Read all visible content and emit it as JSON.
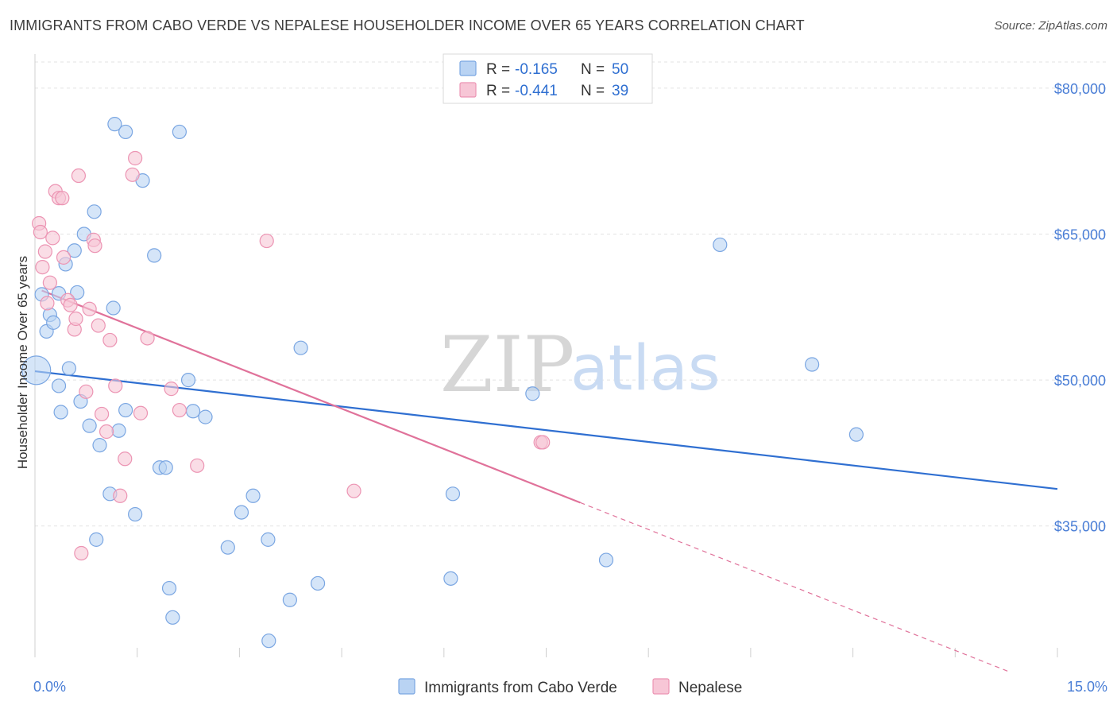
{
  "title": "IMMIGRANTS FROM CABO VERDE VS NEPALESE HOUSEHOLDER INCOME OVER 65 YEARS CORRELATION CHART",
  "source": "Source: ZipAtlas.com",
  "watermark": {
    "zip": "ZIP",
    "atlas": "atlas"
  },
  "colors": {
    "blue_fill": "#b9d3f3",
    "blue_stroke": "#7aa6e2",
    "blue_line": "#2f6fd1",
    "pink_fill": "#f7c6d6",
    "pink_stroke": "#ec94b3",
    "pink_line": "#e0729a",
    "grid": "#e3e3e3",
    "axis_text": "#4a7ed6"
  },
  "legend": {
    "items": [
      {
        "r_label": "R = ",
        "r_value": "-0.165",
        "n_label": "N = ",
        "n_value": "50",
        "color": "blue"
      },
      {
        "r_label": "R = ",
        "r_value": "-0.441",
        "n_label": "N = ",
        "n_value": "39",
        "color": "pink"
      }
    ]
  },
  "chart_data": {
    "type": "scatter",
    "xlabel": "",
    "ylabel": "Householder Income Over 65 years",
    "xlim": [
      0,
      15
    ],
    "ylim": [
      21500,
      83500
    ],
    "x_tick_labels": [
      {
        "value": 0,
        "label": "0.0%"
      },
      {
        "value": 15,
        "label": "15.0%"
      }
    ],
    "y_ticks": [
      {
        "value": 35000,
        "label": "$35,000"
      },
      {
        "value": 50000,
        "label": "$50,000"
      },
      {
        "value": 65000,
        "label": "$65,000"
      },
      {
        "value": 80000,
        "label": "$80,000"
      }
    ],
    "grid": true,
    "legend_position": "top-center",
    "series": [
      {
        "name": "Immigrants from Cabo Verde",
        "color": "blue",
        "trend": {
          "x": [
            0,
            15
          ],
          "y": [
            50900,
            38800
          ],
          "dashed_to": null
        },
        "points": [
          {
            "x": 0.02,
            "y": 51000,
            "big": true
          },
          {
            "x": 0.1,
            "y": 58800
          },
          {
            "x": 0.17,
            "y": 55000
          },
          {
            "x": 0.22,
            "y": 56700
          },
          {
            "x": 0.27,
            "y": 55900
          },
          {
            "x": 0.35,
            "y": 49400
          },
          {
            "x": 0.38,
            "y": 46700
          },
          {
            "x": 0.5,
            "y": 51200
          },
          {
            "x": 0.45,
            "y": 61900
          },
          {
            "x": 0.58,
            "y": 63300
          },
          {
            "x": 0.62,
            "y": 59000
          },
          {
            "x": 0.67,
            "y": 47800
          },
          {
            "x": 0.72,
            "y": 65000
          },
          {
            "x": 0.8,
            "y": 45300
          },
          {
            "x": 0.87,
            "y": 67300
          },
          {
            "x": 0.95,
            "y": 43300
          },
          {
            "x": 0.9,
            "y": 33600
          },
          {
            "x": 1.1,
            "y": 38300
          },
          {
            "x": 1.15,
            "y": 57400
          },
          {
            "x": 1.17,
            "y": 76300
          },
          {
            "x": 1.23,
            "y": 44800
          },
          {
            "x": 1.33,
            "y": 75500
          },
          {
            "x": 1.33,
            "y": 46900
          },
          {
            "x": 1.47,
            "y": 36200
          },
          {
            "x": 1.58,
            "y": 70500
          },
          {
            "x": 1.75,
            "y": 62800
          },
          {
            "x": 1.83,
            "y": 41000
          },
          {
            "x": 1.92,
            "y": 41000
          },
          {
            "x": 1.97,
            "y": 28600
          },
          {
            "x": 2.02,
            "y": 25600
          },
          {
            "x": 2.12,
            "y": 75500
          },
          {
            "x": 2.25,
            "y": 50000
          },
          {
            "x": 2.32,
            "y": 46800
          },
          {
            "x": 2.5,
            "y": 46200
          },
          {
            "x": 2.83,
            "y": 32800
          },
          {
            "x": 3.03,
            "y": 36400
          },
          {
            "x": 3.2,
            "y": 38100
          },
          {
            "x": 3.42,
            "y": 33600
          },
          {
            "x": 3.43,
            "y": 23200
          },
          {
            "x": 3.74,
            "y": 27400
          },
          {
            "x": 3.9,
            "y": 53300
          },
          {
            "x": 4.15,
            "y": 29100
          },
          {
            "x": 6.1,
            "y": 29600
          },
          {
            "x": 6.13,
            "y": 38300
          },
          {
            "x": 7.3,
            "y": 48600
          },
          {
            "x": 8.38,
            "y": 31500
          },
          {
            "x": 10.05,
            "y": 63900
          },
          {
            "x": 11.4,
            "y": 51600
          },
          {
            "x": 12.05,
            "y": 44400
          },
          {
            "x": 0.35,
            "y": 58900
          }
        ]
      },
      {
        "name": "Nepalese",
        "color": "pink",
        "trend": {
          "x": [
            0.1,
            8.0
          ],
          "y": [
            59200,
            37400
          ],
          "dashed_to": {
            "x": 14.3,
            "y": 20000
          }
        },
        "points": [
          {
            "x": 0.06,
            "y": 66100
          },
          {
            "x": 0.08,
            "y": 65200
          },
          {
            "x": 0.11,
            "y": 61600
          },
          {
            "x": 0.15,
            "y": 63200
          },
          {
            "x": 0.18,
            "y": 57900
          },
          {
            "x": 0.22,
            "y": 60000
          },
          {
            "x": 0.26,
            "y": 64600
          },
          {
            "x": 0.3,
            "y": 69400
          },
          {
            "x": 0.35,
            "y": 68700
          },
          {
            "x": 0.4,
            "y": 68700
          },
          {
            "x": 0.42,
            "y": 62600
          },
          {
            "x": 0.48,
            "y": 58200
          },
          {
            "x": 0.52,
            "y": 57700
          },
          {
            "x": 0.58,
            "y": 55200
          },
          {
            "x": 0.6,
            "y": 56300
          },
          {
            "x": 0.64,
            "y": 71000
          },
          {
            "x": 0.68,
            "y": 32200
          },
          {
            "x": 0.75,
            "y": 48800
          },
          {
            "x": 0.8,
            "y": 57300
          },
          {
            "x": 0.86,
            "y": 64400
          },
          {
            "x": 0.88,
            "y": 63800
          },
          {
            "x": 0.93,
            "y": 55600
          },
          {
            "x": 0.98,
            "y": 46500
          },
          {
            "x": 1.05,
            "y": 44700
          },
          {
            "x": 1.1,
            "y": 54100
          },
          {
            "x": 1.18,
            "y": 49400
          },
          {
            "x": 1.25,
            "y": 38100
          },
          {
            "x": 1.32,
            "y": 41900
          },
          {
            "x": 1.43,
            "y": 71100
          },
          {
            "x": 1.47,
            "y": 72800
          },
          {
            "x": 1.55,
            "y": 46600
          },
          {
            "x": 1.65,
            "y": 54300
          },
          {
            "x": 2.0,
            "y": 49100
          },
          {
            "x": 2.12,
            "y": 46900
          },
          {
            "x": 2.38,
            "y": 41200
          },
          {
            "x": 3.4,
            "y": 64300
          },
          {
            "x": 4.68,
            "y": 38600
          },
          {
            "x": 7.42,
            "y": 43600
          },
          {
            "x": 7.45,
            "y": 43600
          }
        ]
      }
    ]
  },
  "bottom_legend": [
    {
      "label": "Immigrants from Cabo Verde",
      "color": "blue"
    },
    {
      "label": "Nepalese",
      "color": "pink"
    }
  ]
}
